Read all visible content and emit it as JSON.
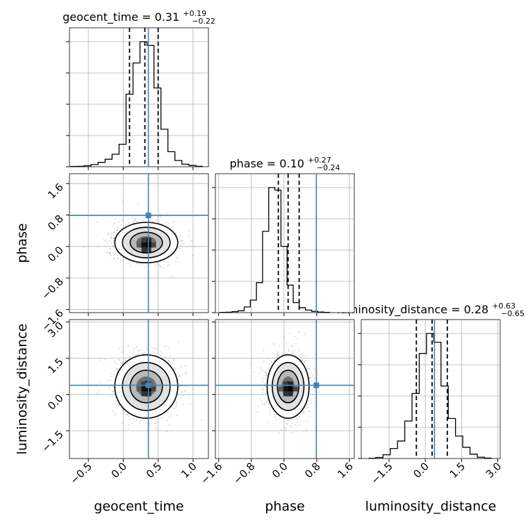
{
  "figure": {
    "type": "corner-plot",
    "truth_color": "#4682b4",
    "hist_color": "#000000",
    "grid": true
  },
  "chart_data": [
    {
      "type": "bar",
      "panel": "geocent_time",
      "title": {
        "name": "geocent_time",
        "median": "0.31",
        "plus": "+0.19",
        "minus": "−0.22"
      },
      "x": [
        -0.71,
        -0.61,
        -0.51,
        -0.41,
        -0.31,
        -0.21,
        -0.11,
        -0.01,
        0.09,
        0.19,
        0.29,
        0.39,
        0.49,
        0.59,
        0.69,
        0.79,
        0.89,
        0.99,
        1.09
      ],
      "values": [
        0.002,
        0.003,
        0.008,
        0.018,
        0.035,
        0.06,
        0.1,
        0.18,
        0.58,
        0.83,
        1.0,
        0.97,
        0.63,
        0.3,
        0.12,
        0.05,
        0.02,
        0.01,
        0.003
      ],
      "quantiles": [
        0.09,
        0.31,
        0.5
      ],
      "truth": 0.36,
      "xlim": [
        -0.77,
        1.22
      ]
    },
    {
      "type": "bar",
      "panel": "phase",
      "title": {
        "name": "phase",
        "median": "0.10",
        "plus": "+0.27",
        "minus": "−0.24"
      },
      "x": [
        -1.5,
        -1.35,
        -1.2,
        -1.05,
        -0.9,
        -0.75,
        -0.6,
        -0.45,
        -0.3,
        -0.15,
        0.0,
        0.15,
        0.3,
        0.45,
        0.6,
        0.75,
        0.9,
        1.05
      ],
      "values": [
        0.002,
        0.003,
        0.008,
        0.015,
        0.045,
        0.1,
        0.24,
        0.65,
        1.0,
        0.98,
        0.53,
        0.22,
        0.08,
        0.04,
        0.02,
        0.01,
        0.005,
        0.002
      ],
      "quantiles": [
        -0.14,
        0.1,
        0.37
      ],
      "truth": 0.79,
      "xlim": [
        -1.68,
        1.72
      ]
    },
    {
      "type": "bar",
      "panel": "luminosity_distance",
      "title": {
        "name": "luminosity_distance",
        "median": "0.28",
        "plus": "+0.63",
        "minus": "−0.65"
      },
      "x": [
        -2.2,
        -1.9,
        -1.6,
        -1.3,
        -1.0,
        -0.7,
        -0.4,
        -0.1,
        0.2,
        0.5,
        0.8,
        1.1,
        1.4,
        1.7,
        2.0,
        2.3,
        2.6
      ],
      "values": [
        0.002,
        0.008,
        0.03,
        0.08,
        0.14,
        0.3,
        0.52,
        0.84,
        1.0,
        0.93,
        0.58,
        0.32,
        0.18,
        0.09,
        0.035,
        0.01,
        0.003
      ],
      "quantiles": [
        -0.37,
        0.28,
        0.91
      ],
      "truth": 0.38,
      "xlim": [
        -2.65,
        3.1
      ]
    },
    {
      "type": "scatter",
      "panel": "phase vs geocent_time",
      "x_param": "geocent_time",
      "y_param": "phase",
      "center": [
        0.33,
        0.1
      ],
      "sigma": [
        0.22,
        0.25
      ],
      "truth": [
        0.36,
        0.79
      ],
      "xlim": [
        -0.77,
        1.22
      ],
      "ylim": [
        -1.68,
        1.85
      ]
    },
    {
      "type": "scatter",
      "panel": "luminosity_distance vs geocent_time",
      "x_param": "geocent_time",
      "y_param": "luminosity_distance",
      "center": [
        0.33,
        0.33
      ],
      "sigma": [
        0.22,
        0.64
      ],
      "truth": [
        0.36,
        0.38
      ],
      "xlim": [
        -0.77,
        1.22
      ],
      "ylim": [
        -2.65,
        3.1
      ]
    },
    {
      "type": "scatter",
      "panel": "luminosity_distance vs phase",
      "x_param": "phase",
      "y_param": "luminosity_distance",
      "center": [
        0.1,
        0.33
      ],
      "sigma": [
        0.25,
        0.64
      ],
      "truth": [
        0.79,
        0.38
      ],
      "xlim": [
        -1.68,
        1.72
      ],
      "ylim": [
        -2.65,
        3.1
      ]
    }
  ],
  "axis_labels": {
    "x": [
      "geocent_time",
      "phase",
      "luminosity_distance"
    ],
    "y": [
      "phase",
      "luminosity_distance"
    ]
  },
  "ticks": {
    "geocent_time": {
      "values": [
        -0.5,
        0.0,
        0.5,
        1.0
      ],
      "labels": [
        "−0.5",
        "0.0",
        "0.5",
        "1.0"
      ]
    },
    "phase": {
      "values": [
        -1.6,
        -0.8,
        0.0,
        0.8,
        1.6
      ],
      "labels": [
        "−1.6",
        "−0.8",
        "0.0",
        "0.8",
        "1.6"
      ]
    },
    "luminosity_distance": {
      "values": [
        -1.5,
        0.0,
        1.5,
        3.0
      ],
      "labels": [
        "−1.5",
        "0.0",
        "1.5",
        "3.0"
      ]
    }
  }
}
